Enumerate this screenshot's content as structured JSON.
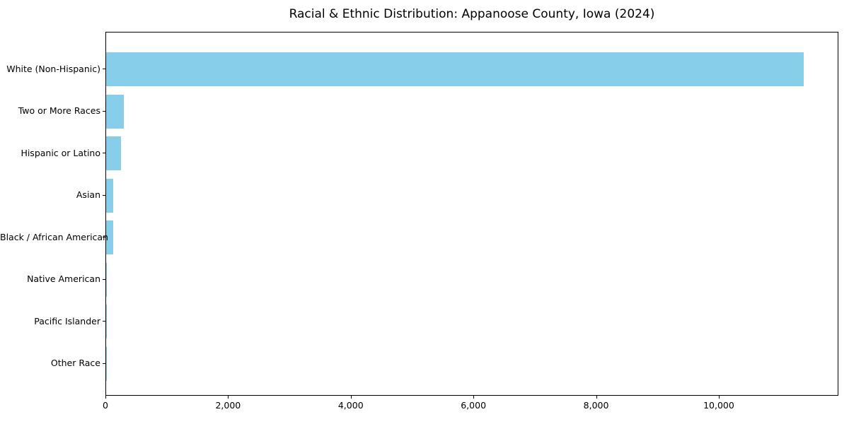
{
  "chart_data": {
    "type": "bar",
    "orientation": "horizontal",
    "title": "Racial & Ethnic Distribution: Appanoose County, Iowa (2024)",
    "categories": [
      "White (Non-Hispanic)",
      "Two or More Races",
      "Hispanic or Latino",
      "Asian",
      "Black / African American",
      "Native American",
      "Pacific Islander",
      "Other Race"
    ],
    "values": [
      11390,
      290,
      240,
      115,
      110,
      10,
      5,
      5
    ],
    "xlabel": "",
    "ylabel": "",
    "xlim": [
      0,
      11950
    ],
    "xticks": [
      0,
      2000,
      4000,
      6000,
      8000,
      10000
    ],
    "xtick_labels": [
      "0",
      "2,000",
      "4,000",
      "6,000",
      "8,000",
      "10,000"
    ],
    "bar_color": "#87CEEB",
    "background_color": "#ffffff",
    "spine_color": "#000000",
    "grid": false,
    "legend": false
  }
}
